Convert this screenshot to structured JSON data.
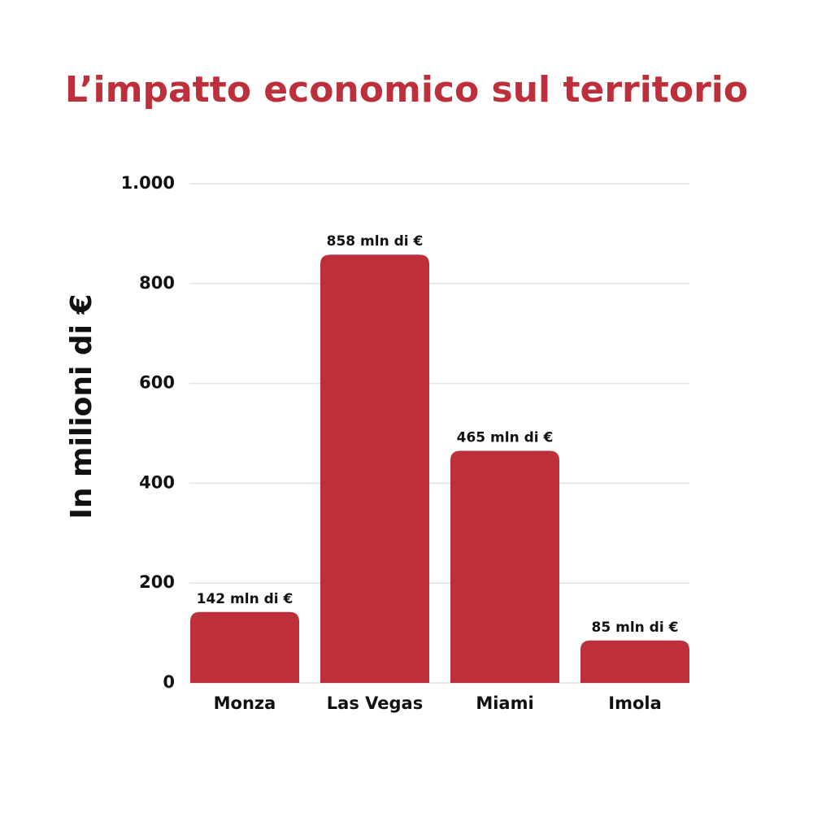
{
  "chart_data": {
    "type": "bar",
    "title": "L’impatto economico sul territorio",
    "y_label": "In milioni di €",
    "categories": [
      "Monza",
      "Las Vegas",
      "Miami",
      "Imola"
    ],
    "values": [
      142,
      858,
      465,
      85
    ],
    "value_labels": [
      "142 mln di €",
      "858 mln di €",
      "465 mln di €",
      "85 mln di €"
    ],
    "color": "#bc2f3b",
    "ylim": [
      0,
      1000
    ],
    "yticks": [
      0,
      200,
      400,
      600,
      800,
      {
        "value": 1000,
        "label": "1.000"
      }
    ],
    "grid": true
  }
}
